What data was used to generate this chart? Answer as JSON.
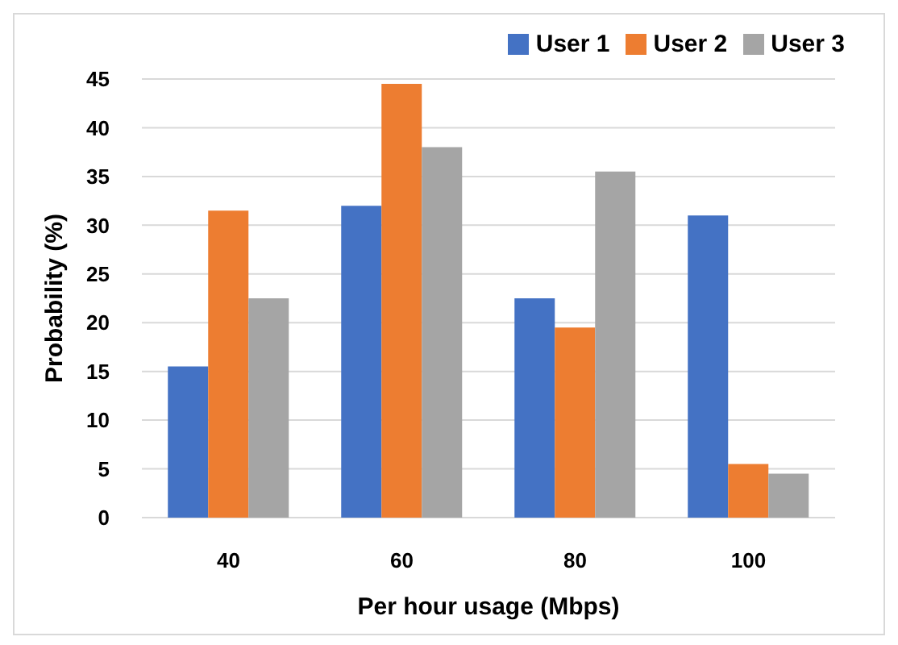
{
  "chart_data": {
    "type": "bar",
    "categories": [
      "40",
      "60",
      "80",
      "100"
    ],
    "series": [
      {
        "name": "User 1",
        "color": "#4472c4",
        "values": [
          15.5,
          32,
          22.5,
          31
        ]
      },
      {
        "name": "User 2",
        "color": "#ed7d31",
        "values": [
          31.5,
          44.5,
          19.5,
          5.5
        ]
      },
      {
        "name": "User 3",
        "color": "#a5a5a5",
        "values": [
          22.5,
          38,
          35.5,
          4.5
        ]
      }
    ],
    "xlabel": "Per hour usage (Mbps)",
    "ylabel": "Probability (%)",
    "ylim": [
      0,
      45
    ],
    "yticks": [
      0,
      5,
      10,
      15,
      20,
      25,
      30,
      35,
      40,
      45
    ],
    "grid": "y",
    "legend": "top right"
  }
}
